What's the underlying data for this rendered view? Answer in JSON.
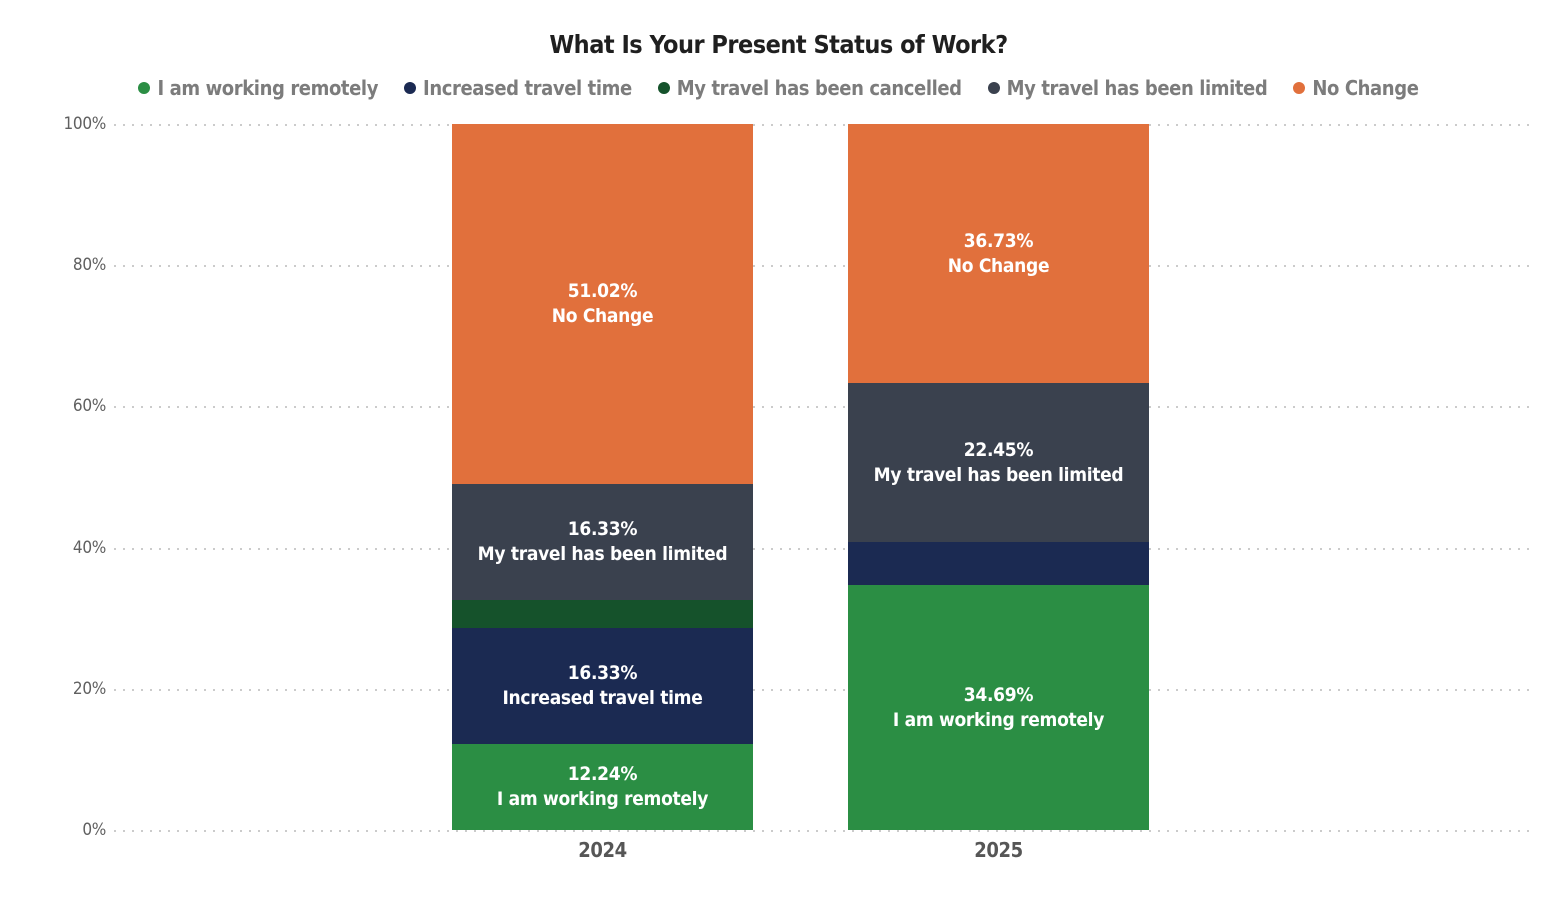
{
  "title": "What Is Your Present Status of Work?",
  "chart_data": {
    "type": "bar",
    "subtype": "stacked-percent-column",
    "title": "What Is Your Present Status of Work?",
    "categories": [
      "2024",
      "2025"
    ],
    "series": [
      {
        "name": "I am working remotely",
        "color": "#2b8e44",
        "values": [
          12.24,
          34.69
        ]
      },
      {
        "name": "Increased travel time",
        "color": "#1b2a52",
        "values": [
          16.33,
          6.12
        ]
      },
      {
        "name": "My travel has been cancelled",
        "color": "#15522b",
        "values": [
          4.08,
          0
        ]
      },
      {
        "name": "My travel has been limited",
        "color": "#3a414e",
        "values": [
          16.33,
          22.45
        ]
      },
      {
        "name": "No Change",
        "color": "#e1703c",
        "values": [
          51.02,
          36.73
        ]
      }
    ],
    "segment_labels": {
      "2024": [
        "12.24%\nI am working remotely",
        "16.33%\nIncreased travel time",
        "",
        "16.33%\nMy travel has been limited",
        "51.02%\nNo Change"
      ],
      "2025": [
        "34.69%\nI am working remotely",
        "",
        "",
        "22.45%\nMy travel has been limited",
        "36.73%\nNo Change"
      ]
    },
    "yticks": [
      {
        "label": "0%",
        "value": 0
      },
      {
        "label": "20%",
        "value": 20
      },
      {
        "label": "40%",
        "value": 40
      },
      {
        "label": "60%",
        "value": 60
      },
      {
        "label": "80%",
        "value": 80
      },
      {
        "label": "100%",
        "value": 100
      }
    ],
    "ylim": [
      0,
      100
    ],
    "grid": "horizontal dotted gray",
    "legend_position": "top",
    "label_text_color": "#ffffff"
  }
}
